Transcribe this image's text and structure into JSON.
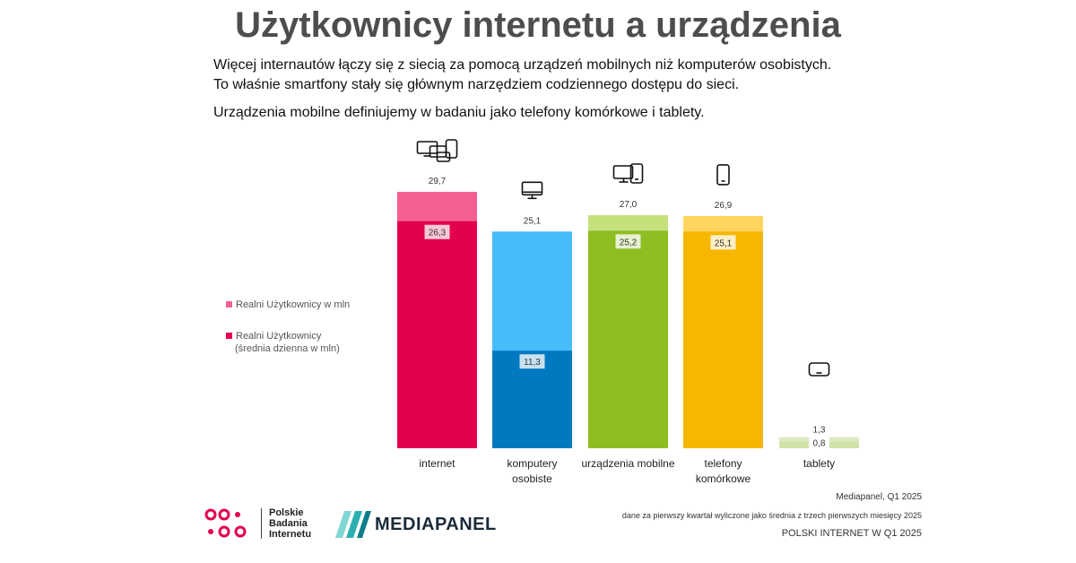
{
  "title": "Użytkownicy internetu a urządzenia",
  "intro": {
    "line1": "Więcej internautów łączy się z siecią za pomocą urządzeń mobilnych niż komputerów osobistych.",
    "line2": "To właśnie smartfony stały się głównym narzędziem codziennego dostępu do sieci.",
    "line3": "Urządzenia mobilne definiujemy w badaniu jako telefony komórkowe i tablety."
  },
  "legend": {
    "item1": "Realni Użytkownicy w mln",
    "item2_line1": "Realni Użytkownicy",
    "item2_line2": "(średnia dzienna w mln)"
  },
  "chart_data": {
    "type": "bar",
    "categories": [
      "internet",
      "komputery osobiste",
      "urządzenia mobilne",
      "telefony komórkowe",
      "tablety"
    ],
    "category_labels": [
      [
        "internet"
      ],
      [
        "komputery",
        "osobiste"
      ],
      [
        "urządzenia mobilne"
      ],
      [
        "telefony",
        "komórkowe"
      ],
      [
        "tablety"
      ]
    ],
    "series": [
      {
        "name": "Realni Użytkownicy w mln",
        "values": [
          29.7,
          25.1,
          27.0,
          26.9,
          1.3
        ]
      },
      {
        "name": "Realni Użytkownicy (średnia dzienna w mln)",
        "values": [
          26.3,
          11.3,
          25.2,
          25.1,
          0.8
        ]
      }
    ],
    "total_labels": [
      "29,7",
      "25,1",
      "27,0",
      "26,9",
      "1,3"
    ],
    "daily_labels": [
      "26,3",
      "11,3",
      "25,2",
      "25,1",
      "0,8"
    ],
    "icons": [
      "all-devices-icon",
      "desktop-icon",
      "desktop-and-phone-icon",
      "smartphone-icon",
      "tablet-icon"
    ],
    "colors": {
      "total": [
        "#f4608f",
        "#48bcfb",
        "#c4e17c",
        "#ffd560",
        "#dde9c0"
      ],
      "daily": [
        "#e3004f",
        "#0079c1",
        "#8ebd22",
        "#f7b700",
        "#cfe3a8"
      ]
    },
    "ylim": [
      0,
      29.7
    ]
  },
  "footer": {
    "pbi_line1": "Polskie",
    "pbi_line2": "Badania",
    "pbi_line3": "Internetu",
    "mediapanel": "MEDIAPANEL",
    "source1": "Mediapanel, Q1 2025",
    "source2": "dane za pierwszy kwartał wyliczone jako średnia z trzech pierwszych miesięcy 2025",
    "source3": "POLSKI INTERNET W Q1 2025"
  }
}
